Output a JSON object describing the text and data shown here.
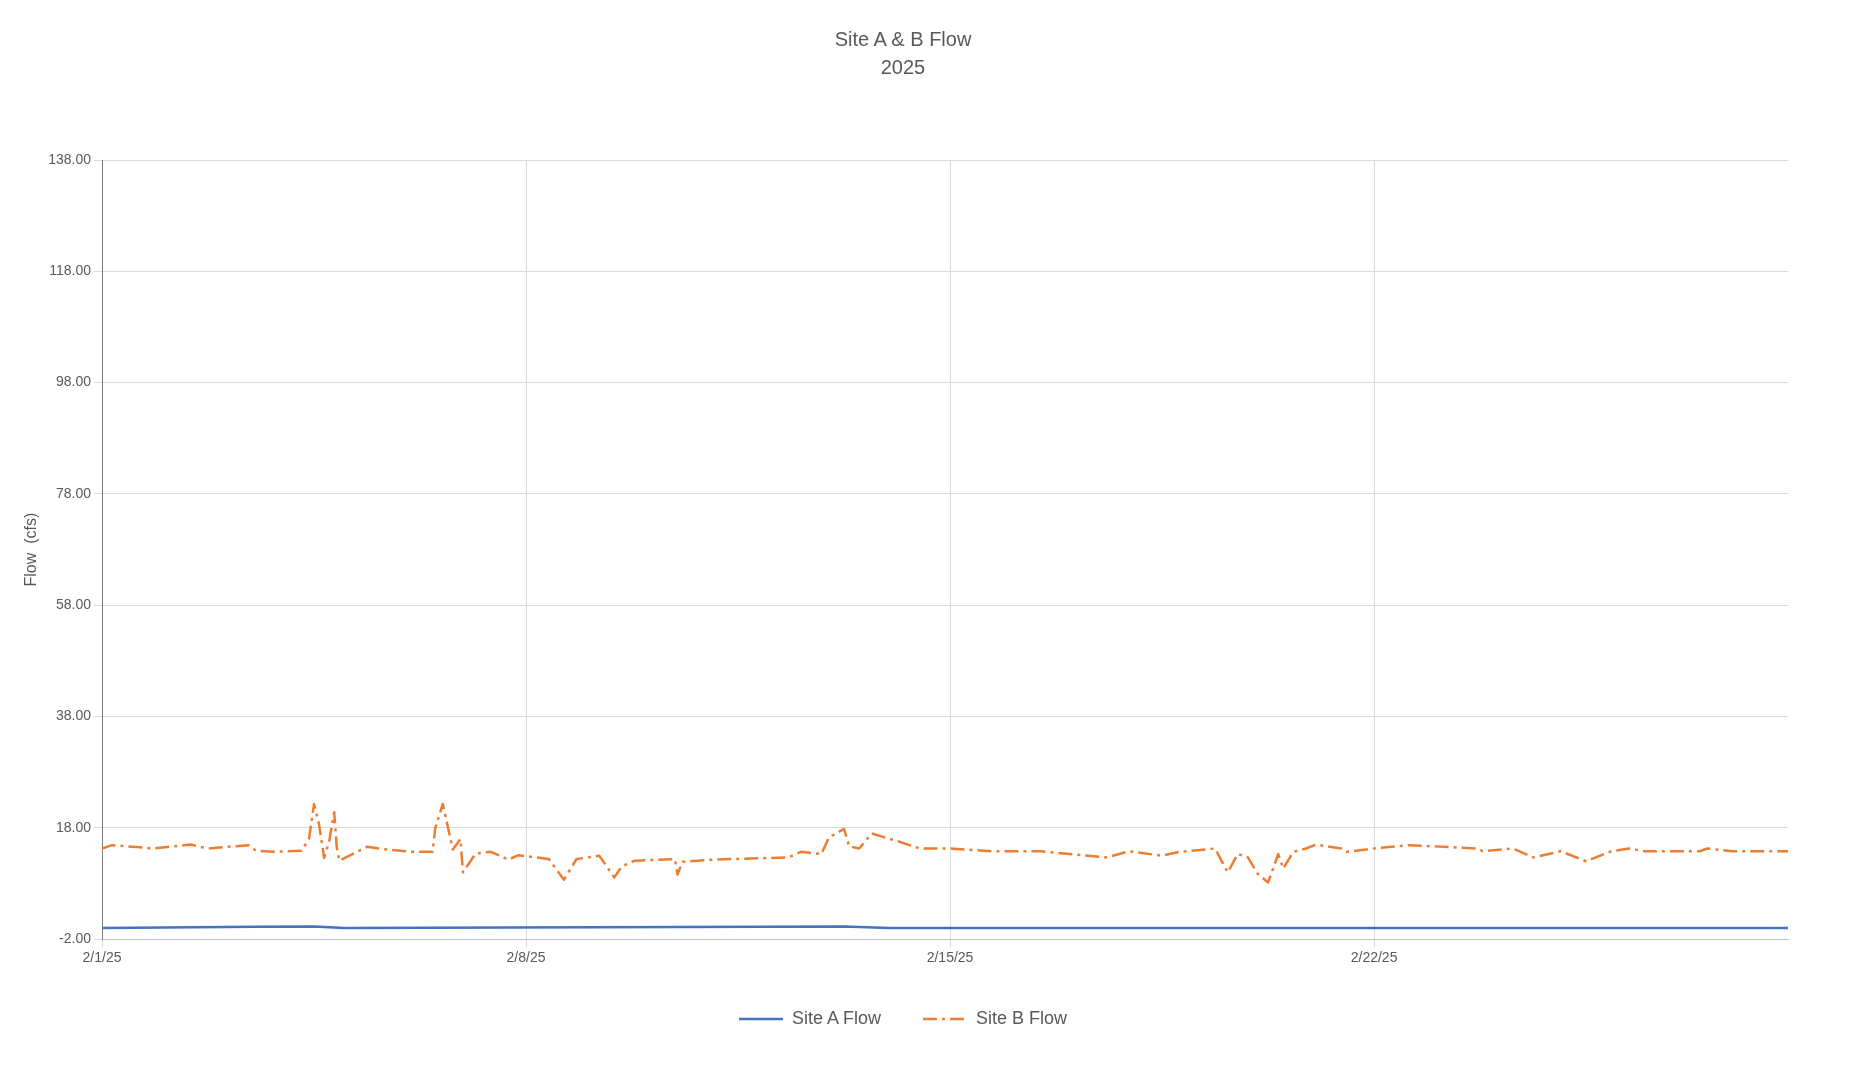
{
  "chart_data": {
    "type": "line",
    "title": "Site A & B Flow",
    "subtitle": "2025",
    "ylabel": "Flow  (cfs)",
    "xlim": [
      "2025-02-01",
      "2025-02-28T20:00"
    ],
    "xticks": [
      {
        "value": "2025-02-01",
        "label": "2/1/25"
      },
      {
        "value": "2025-02-08",
        "label": "2/8/25"
      },
      {
        "value": "2025-02-15",
        "label": "2/15/25"
      },
      {
        "value": "2025-02-22",
        "label": "2/22/25"
      }
    ],
    "ylim": [
      -2,
      138
    ],
    "yticks": [
      {
        "value": -2,
        "label": "-2.00"
      },
      {
        "value": 18,
        "label": "18.00"
      },
      {
        "value": 38,
        "label": "38.00"
      },
      {
        "value": 58,
        "label": "58.00"
      },
      {
        "value": 78,
        "label": "78.00"
      },
      {
        "value": 98,
        "label": "98.00"
      },
      {
        "value": 118,
        "label": "118.00"
      },
      {
        "value": 138,
        "label": "138.00"
      }
    ],
    "grid": true,
    "legend": "bottom",
    "marker": "none",
    "series": [
      {
        "name": "Site A Flow",
        "color": "#4472c4",
        "line_style": "solid",
        "x": [
          "2025-02-01",
          "2025-02-04T12:00",
          "2025-02-05",
          "2025-02-13T06:00",
          "2025-02-14",
          "2025-02-28T20:00"
        ],
        "values": [
          0,
          0.3,
          0,
          0.3,
          0,
          0
        ]
      },
      {
        "name": "Site B Flow",
        "color": "#ed7d31",
        "line_style": "dashed",
        "x": [
          "2025-02-01",
          "2025-02-01T04:00",
          "2025-02-01T15:00",
          "2025-02-01T20:00",
          "2025-02-02T11:00",
          "2025-02-02T18:00",
          "2025-02-03T10:00",
          "2025-02-03T13:00",
          "2025-02-03T20:00",
          "2025-02-04T07:00",
          "2025-02-04T10:00",
          "2025-02-04T12:00",
          "2025-02-04T14:00",
          "2025-02-04T16:00",
          "2025-02-04T18:00",
          "2025-02-04T20:00",
          "2025-02-04T21:00",
          "2025-02-04T22:00",
          "2025-02-05T05:00",
          "2025-02-05T09:00",
          "2025-02-05T17:00",
          "2025-02-06T03:00",
          "2025-02-06T11:00",
          "2025-02-06T12:00",
          "2025-02-06T15:00",
          "2025-02-06T17:00",
          "2025-02-06T19:00",
          "2025-02-06T22:00",
          "2025-02-06T23:00",
          "2025-02-07T04:00",
          "2025-02-07T10:00",
          "2025-02-07T17:00",
          "2025-02-07T21:00",
          "2025-02-08T09:00",
          "2025-02-08T15:00",
          "2025-02-08T20:00",
          "2025-02-09T05:00",
          "2025-02-09T11:00",
          "2025-02-09T14:00",
          "2025-02-09T19:00",
          "2025-02-10T11:00",
          "2025-02-10T12:00",
          "2025-02-10T14:00",
          "2025-02-11T02:00",
          "2025-02-12T08:00",
          "2025-02-12T13:00",
          "2025-02-12T21:00",
          "2025-02-13T00:00",
          "2025-02-13T06:00",
          "2025-02-13T08:00",
          "2025-02-13T12:00",
          "2025-02-13T17:00",
          "2025-02-13T22:00",
          "2025-02-14T04:00",
          "2025-02-14T12:00",
          "2025-02-15T00:00",
          "2025-02-15T17:00",
          "2025-02-16T12:00",
          "2025-02-17T14:00",
          "2025-02-17T23:00",
          "2025-02-18T12:00",
          "2025-02-18T19:00",
          "2025-02-19T09:00",
          "2025-02-19T14:00",
          "2025-02-19T18:00",
          "2025-02-19T22:00",
          "2025-02-20T02:00",
          "2025-02-20T06:00",
          "2025-02-20T08:00",
          "2025-02-20T10:00",
          "2025-02-20T12:00",
          "2025-02-20T16:00",
          "2025-02-20T21:00",
          "2025-02-21T01:00",
          "2025-02-21T11:00",
          "2025-02-21T13:00",
          "2025-02-22T00:00",
          "2025-02-22T14:00",
          "2025-02-23T17:00",
          "2025-02-23T19:00",
          "2025-02-24T07:00",
          "2025-02-24T15:00",
          "2025-02-25T02:00",
          "2025-02-25T12:00",
          "2025-02-25T22:00",
          "2025-02-26T05:00",
          "2025-02-26T11:00",
          "2025-02-27T09:00",
          "2025-02-27T12:00",
          "2025-02-27T22:00",
          "2025-02-28T20:00"
        ],
        "values": [
          14.3,
          14.9,
          14.5,
          14.3,
          15.0,
          14.3,
          14.9,
          13.9,
          13.7,
          13.9,
          16.0,
          22.3,
          18.6,
          12.6,
          15.6,
          20.8,
          14.5,
          12.1,
          13.7,
          14.6,
          14.1,
          13.7,
          13.7,
          17.9,
          22.3,
          18.2,
          14.1,
          16.0,
          10.0,
          13.4,
          13.7,
          12.3,
          13.1,
          12.4,
          8.7,
          12.4,
          13.0,
          9.1,
          11.1,
          12.1,
          12.4,
          9.6,
          11.9,
          12.3,
          12.7,
          13.7,
          13.3,
          16.3,
          17.8,
          14.7,
          14.3,
          17.0,
          16.3,
          15.5,
          14.3,
          14.3,
          13.8,
          13.8,
          12.7,
          13.8,
          13.0,
          13.7,
          14.3,
          10.0,
          13.3,
          12.7,
          9.7,
          8.2,
          10.7,
          13.3,
          10.7,
          13.7,
          14.3,
          15.0,
          14.3,
          13.7,
          14.3,
          14.9,
          14.3,
          13.8,
          14.3,
          12.7,
          13.8,
          12.0,
          13.8,
          14.3,
          13.8,
          13.8,
          14.3,
          13.8,
          13.8
        ]
      }
    ]
  }
}
